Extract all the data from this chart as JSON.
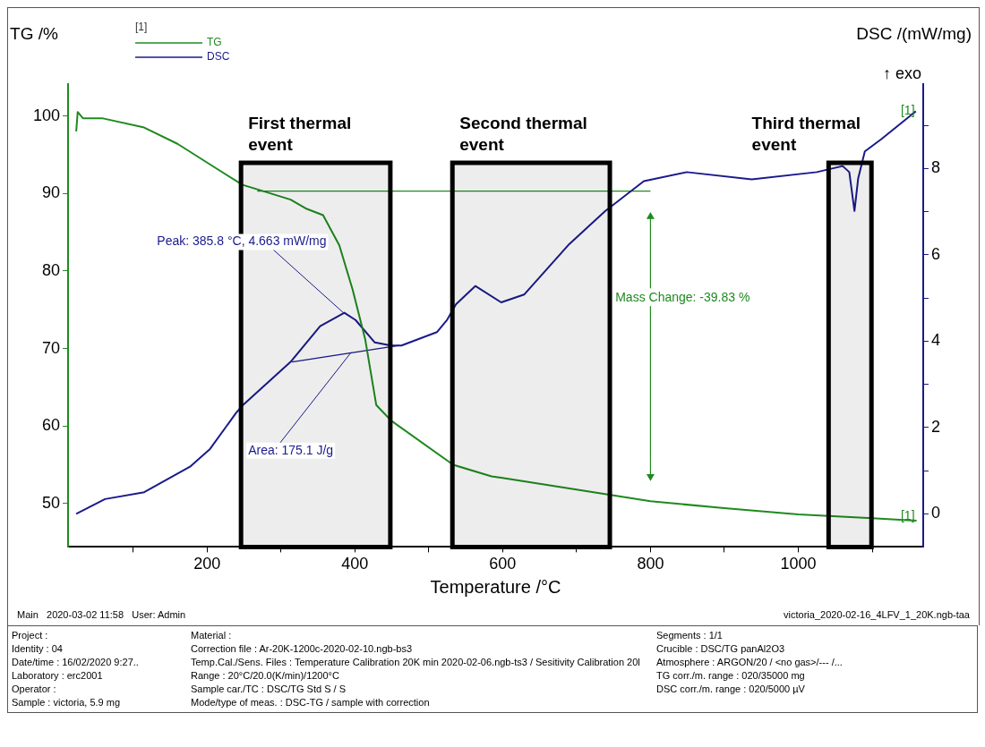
{
  "chart_data": [
    {
      "type": "line",
      "xlabel": "Temperature /°C",
      "ylabel": "TG /%",
      "y2label": "DSC /(mW/mg)",
      "legend_title": "[1]",
      "legend": "top left",
      "grid": false,
      "xlim": [
        12,
        1169
      ],
      "xticks": [
        {
          "value": 100,
          "label": null
        },
        200,
        {
          "value": 300,
          "label": null
        },
        400,
        {
          "value": 500,
          "label": null
        },
        600,
        {
          "value": 700,
          "label": null
        },
        800,
        {
          "value": 900,
          "label": null
        },
        1000,
        {
          "value": 1100,
          "label": null
        }
      ],
      "ylim": [
        44.4,
        104.1
      ],
      "yticks": [
        50,
        60,
        70,
        80,
        90,
        100
      ],
      "y2lim": [
        -0.77,
        9.96
      ],
      "y2ticks": [
        0,
        {
          "value": 1,
          "label": null
        },
        2,
        {
          "value": 3,
          "label": null
        },
        4,
        {
          "value": 5,
          "label": null
        },
        6,
        {
          "value": 7,
          "label": null
        },
        8,
        {
          "value": 9,
          "label": null
        }
      ],
      "series": [
        {
          "name": "TG",
          "color": "#1f8a1f",
          "x": [
            23,
            25,
            32,
            58,
            115,
            160,
            203,
            248,
            269,
            313,
            335,
            357,
            379,
            397,
            414,
            429,
            449,
            533,
            585,
            600,
            700,
            800,
            900,
            1000,
            1100,
            1160
          ],
          "values": [
            98,
            100.5,
            99.7,
            99.7,
            98.5,
            96.4,
            93.8,
            91.1,
            90.5,
            89.2,
            88.0,
            87.2,
            83.3,
            77.6,
            71.2,
            62.7,
            60.7,
            55.0,
            53.5,
            53.3,
            51.8,
            50.3,
            49.4,
            48.6,
            48.1,
            47.8
          ]
        },
        {
          "name": "DSC",
          "color": "#1a1a8c",
          "axis": "y2",
          "x": [
            23,
            62,
            115,
            177,
            204,
            239,
            248,
            313,
            353,
            385.8,
            401,
            427,
            449,
            463,
            511,
            525,
            537,
            563,
            598,
            629,
            690,
            739,
            791,
            849,
            937,
            1025,
            1060,
            1069,
            1076,
            1081,
            1090,
            1112,
            1159
          ],
          "values": [
            0.0,
            0.34,
            0.5,
            1.09,
            1.5,
            2.33,
            2.51,
            3.52,
            4.35,
            4.66,
            4.49,
            3.97,
            3.9,
            3.9,
            4.21,
            4.5,
            4.86,
            5.28,
            4.9,
            5.08,
            6.25,
            7.02,
            7.71,
            7.92,
            7.75,
            7.92,
            8.06,
            7.92,
            7.02,
            7.77,
            8.4,
            8.68,
            9.33
          ]
        },
        {
          "color": "#1f8a1f",
          "x": [
            268,
            800
          ],
          "values": [
            90.3,
            90.3
          ]
        },
        {
          "color": "#1a1a8c",
          "axis": "y2",
          "x": [
            315,
            460
          ],
          "values": [
            3.52,
            3.9
          ]
        },
        {
          "color": "#1f8a1f",
          "marker": "triangle",
          "x": [
            800,
            800
          ],
          "values": [
            87,
            53.5
          ]
        }
      ],
      "bands": [
        {
          "axis": "x",
          "from": 246,
          "to": 448,
          "label": "First thermal event",
          "color": "#000000"
        },
        {
          "axis": "x",
          "from": 532,
          "to": 745,
          "label": "Second thermal event",
          "color": "#000000"
        },
        {
          "axis": "x",
          "from": 1041,
          "to": 1099,
          "label": "Third thermal event",
          "color": "#000000"
        }
      ],
      "annotations": [
        "↑ exo",
        "Main   2020-03-02 11:58   User: Admin",
        "victoria_2020-02-16_4LFV_1_20K.ngb-taa",
        {
          "text": "Peak: 385.8 °C, 4.663 mW/mg",
          "x": 385.8,
          "y": 74.5
        },
        {
          "text": "Area: 175.1 J/g",
          "x": 395,
          "y": 69.5
        },
        "Mass Change: -39.83 %",
        {
          "text": "[1]",
          "x": 1160,
          "y": 100.6
        },
        {
          "text": "[1]",
          "x": 1160,
          "y": 48.3
        }
      ]
    },
    {
      "type": "other",
      "annotations": [
        "Project :",
        "Material :",
        "Segments :   1/1",
        "Identity :   04",
        "Correction file :   Ar-20K-1200c-2020-02-10.ngb-bs3",
        "Crucible :   DSC/TG panAl2O3",
        "Date/time :   16/02/2020 9:27..",
        "Temp.Cal./Sens. Files :   Temperature Calibration 20K min 2020-02-06.ngb-ts3 / Sesitivity Calibration 20l",
        "Atmosphere :   ARGON/20 / <no gas>/--- /...",
        "Laboratory :   erc2001",
        "Range :   20°C/20.0(K/min)/1200°C",
        "TG corr./m. range :   020/35000 mg",
        "Operator :",
        "Sample car./TC :   DSC/TG Std S / S",
        "DSC corr./m. range :   020/5000 µV",
        "Sample :   victoria, 5.9 mg",
        "Mode/type of meas. :   DSC-TG / sample with correction"
      ]
    }
  ]
}
